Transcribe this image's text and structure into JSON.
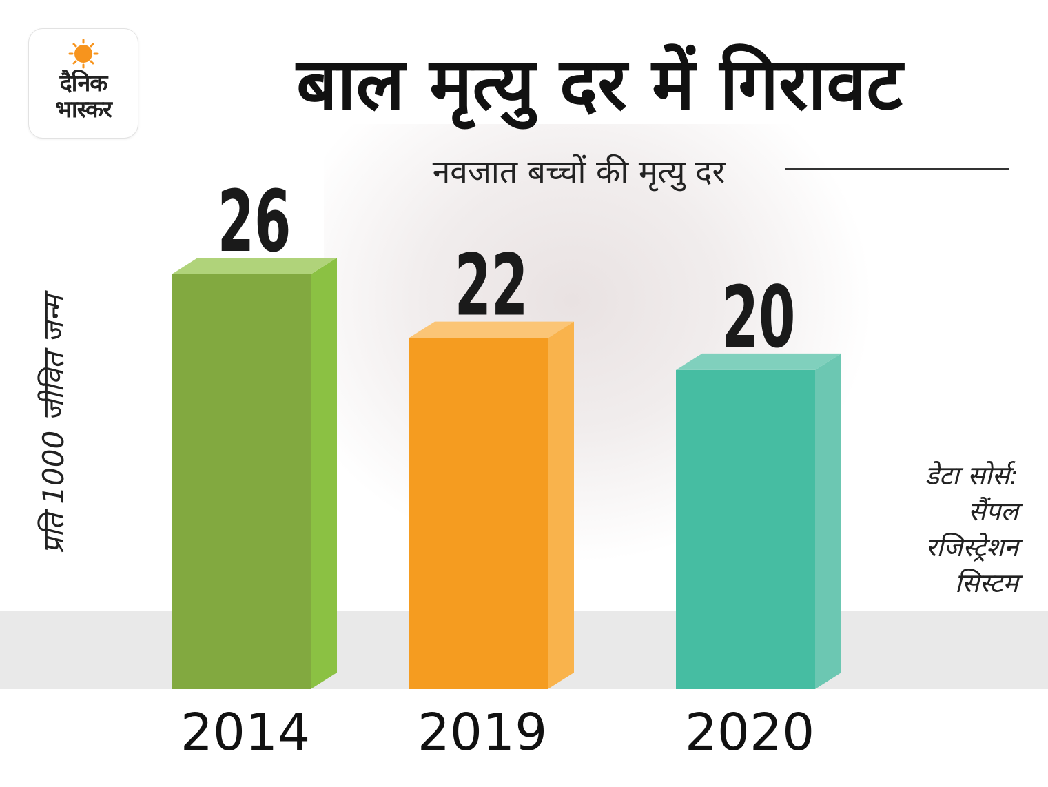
{
  "logo": {
    "line1": "दैनिक",
    "line2": "भास्कर",
    "sun_color": "#f7941d"
  },
  "header": {
    "title": "बाल मृत्यु दर में गिरावट"
  },
  "source": {
    "lines": [
      "डेटा सोर्स:",
      "सैंपल",
      "रजिस्ट्रेशन",
      "सिस्टम"
    ]
  },
  "chart_data": {
    "type": "bar",
    "title": "बाल मृत्यु दर में गिरावट",
    "subtitle": "नवजात बच्चों की मृत्यु दर",
    "ylabel": "प्रति 1000 जीवित जन्म",
    "xlabel": "",
    "categories": [
      "2014",
      "2019",
      "2020"
    ],
    "values": [
      26,
      22,
      20
    ],
    "colors": [
      "#82a940",
      "#f59c20",
      "#46bda2"
    ],
    "side_colors": [
      "#8bc143",
      "#f9b34c",
      "#6cc7b2"
    ],
    "top_colors": [
      "#b0d37a",
      "#fbc576",
      "#80d0bd"
    ],
    "ylim": [
      0,
      26
    ],
    "grid": false,
    "legend": "none"
  }
}
